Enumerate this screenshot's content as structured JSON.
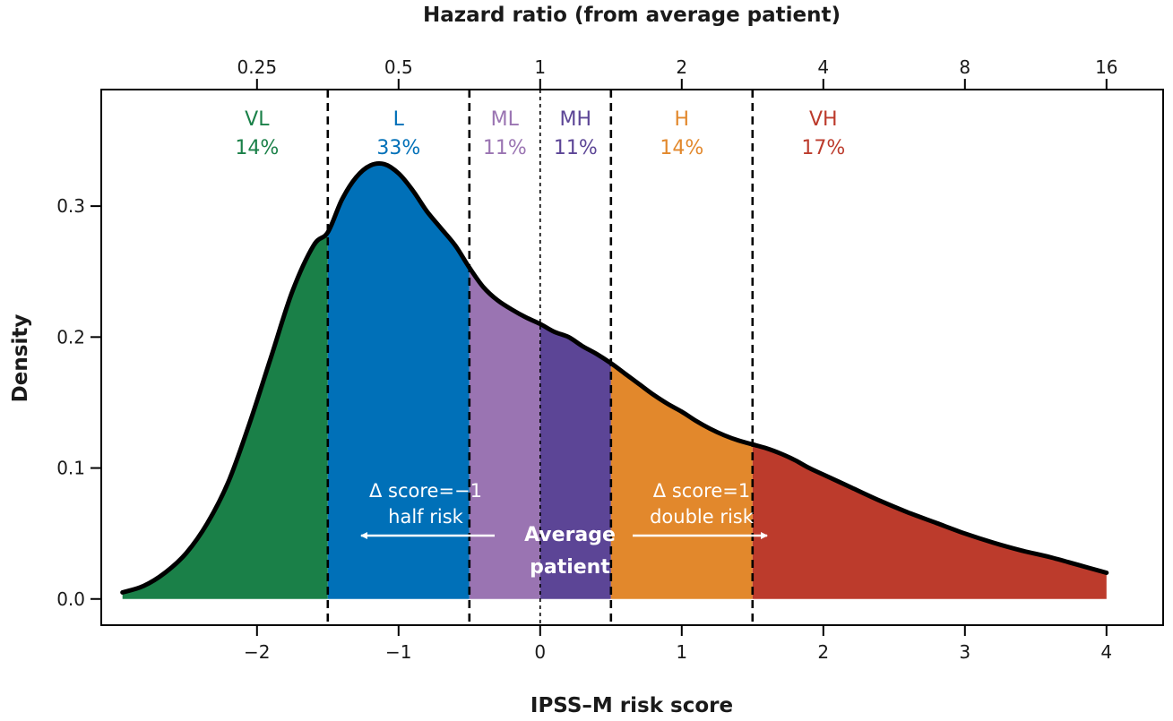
{
  "chart_data": {
    "type": "area",
    "xlabel": "IPSS–M risk score",
    "ylabel": "Density",
    "top_axis_title": "Hazard ratio (from average patient)",
    "xlim": [
      -3.1,
      4.4
    ],
    "ylim": [
      -0.02,
      0.389
    ],
    "x_ticks": [
      -2,
      -1,
      0,
      1,
      2,
      3,
      4
    ],
    "x_tick_labels": [
      "−2",
      "−1",
      "0",
      "1",
      "2",
      "3",
      "4"
    ],
    "y_ticks": [
      0.0,
      0.1,
      0.2,
      0.3
    ],
    "y_tick_labels": [
      "0.0",
      "0.1",
      "0.2",
      "0.3"
    ],
    "top_ticks": [
      {
        "score": -2,
        "label": "0.25"
      },
      {
        "score": -1,
        "label": "0.5"
      },
      {
        "score": 0,
        "label": "1"
      },
      {
        "score": 1,
        "label": "2"
      },
      {
        "score": 2,
        "label": "4"
      },
      {
        "score": 3,
        "label": "8"
      },
      {
        "score": 4,
        "label": "16"
      }
    ],
    "density": {
      "x": [
        -2.95,
        -2.8,
        -2.65,
        -2.5,
        -2.35,
        -2.2,
        -2.05,
        -1.9,
        -1.75,
        -1.6,
        -1.5,
        -1.4,
        -1.3,
        -1.2,
        -1.1,
        -1.0,
        -0.9,
        -0.8,
        -0.7,
        -0.6,
        -0.5,
        -0.4,
        -0.3,
        -0.2,
        -0.1,
        0.0,
        0.1,
        0.2,
        0.3,
        0.4,
        0.5,
        0.6,
        0.7,
        0.8,
        0.9,
        1.0,
        1.1,
        1.2,
        1.3,
        1.4,
        1.5,
        1.6,
        1.7,
        1.8,
        1.9,
        2.0,
        2.2,
        2.4,
        2.6,
        2.8,
        3.0,
        3.2,
        3.4,
        3.6,
        3.8,
        4.0
      ],
      "y": [
        0.005,
        0.01,
        0.02,
        0.035,
        0.058,
        0.09,
        0.135,
        0.185,
        0.235,
        0.27,
        0.28,
        0.305,
        0.322,
        0.331,
        0.332,
        0.325,
        0.312,
        0.296,
        0.283,
        0.27,
        0.253,
        0.238,
        0.228,
        0.221,
        0.215,
        0.21,
        0.204,
        0.2,
        0.193,
        0.187,
        0.18,
        0.172,
        0.164,
        0.156,
        0.149,
        0.143,
        0.136,
        0.13,
        0.125,
        0.121,
        0.118,
        0.115,
        0.111,
        0.106,
        0.1,
        0.095,
        0.085,
        0.075,
        0.066,
        0.058,
        0.05,
        0.043,
        0.037,
        0.032,
        0.026,
        0.02
      ]
    },
    "categories": [
      {
        "name": "VL",
        "percent": "14%",
        "from": -3.1,
        "to": -1.5,
        "fill": "#1a8048",
        "label_color": "#1a8048"
      },
      {
        "name": "L",
        "percent": "33%",
        "from": -1.5,
        "to": -0.5,
        "fill": "#0070b8",
        "label_color": "#0070b8"
      },
      {
        "name": "ML",
        "percent": "11%",
        "from": -0.5,
        "to": 0.0,
        "fill": "#9a74b2",
        "label_color": "#9a74b2"
      },
      {
        "name": "MH",
        "percent": "11%",
        "from": 0.0,
        "to": 0.5,
        "fill": "#5c4596",
        "label_color": "#5c4596"
      },
      {
        "name": "H",
        "percent": "14%",
        "from": 0.5,
        "to": 1.5,
        "fill": "#e2882c",
        "label_color": "#e2882c"
      },
      {
        "name": "VH",
        "percent": "17%",
        "from": 1.5,
        "to": 4.4,
        "fill": "#bc3b2c",
        "label_color": "#bc3b2c"
      }
    ],
    "cutoffs": [
      -1.5,
      -0.5,
      0.0,
      0.5,
      1.5
    ],
    "annotations": {
      "left_line1": "Δ score=−1",
      "left_line2": "half risk",
      "right_line1": "Δ score=1",
      "right_line2": "double risk",
      "center_line1": "Average",
      "center_line2": "patient"
    }
  }
}
